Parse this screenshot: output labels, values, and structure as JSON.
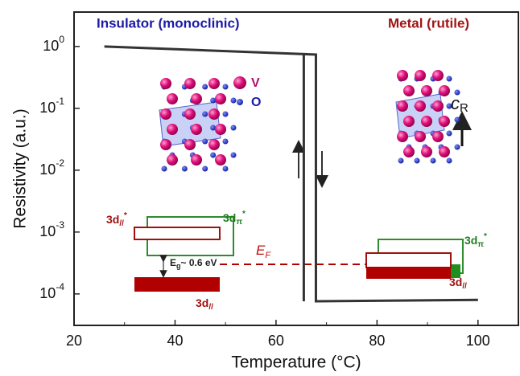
{
  "chart_data": {
    "type": "line",
    "xlabel": "Temperature (°C)",
    "ylabel": "Resistivity (a.u.)",
    "xlim": [
      20,
      108
    ],
    "xticks": [
      20,
      40,
      60,
      80,
      100
    ],
    "ylim": [
      3.1e-05,
      3.6
    ],
    "log_y": true,
    "yticks": [
      {
        "value": 1,
        "label": "10",
        "exponent": "0"
      },
      {
        "value": 0.1,
        "label": "10",
        "exponent": "-1"
      },
      {
        "value": 0.01,
        "label": "10",
        "exponent": "-2"
      },
      {
        "value": 0.001,
        "label": "10",
        "exponent": "-3"
      },
      {
        "value": 0.0001,
        "label": "10",
        "exponent": "-4"
      }
    ],
    "series": [
      {
        "color": "#333333",
        "x": [
          26,
          67.9,
          67.9,
          100
        ],
        "values": [
          1.0,
          0.74,
          7.6e-05,
          8e-05
        ]
      },
      {
        "color": "#333333",
        "x": [
          65.5,
          65.5
        ],
        "values": [
          0.76,
          7.6e-05
        ]
      }
    ],
    "annotations": {
      "insulator": "Insulator (monoclinic)",
      "metal": "Metal (rutile)",
      "v": "V",
      "o": "O",
      "c_r": {
        "main": "c",
        "sub": "R"
      },
      "left_d_par_star": {
        "main": "3d",
        "sub": "//",
        "sup": "*"
      },
      "left_d_pi_star": {
        "main": "3d",
        "sub": "π",
        "sup": "*"
      },
      "gap": {
        "main": "E",
        "sub": "g",
        "rest": "~ 0.6 eV"
      },
      "left_d_par": {
        "main": "3d",
        "sub": "//"
      },
      "fermi": {
        "main": "E",
        "sub": "F"
      },
      "right_d_pi_star": {
        "main": "3d",
        "sub": "π",
        "sup": "*"
      },
      "right_d_par": {
        "main": "3d",
        "sub": "//"
      }
    }
  }
}
